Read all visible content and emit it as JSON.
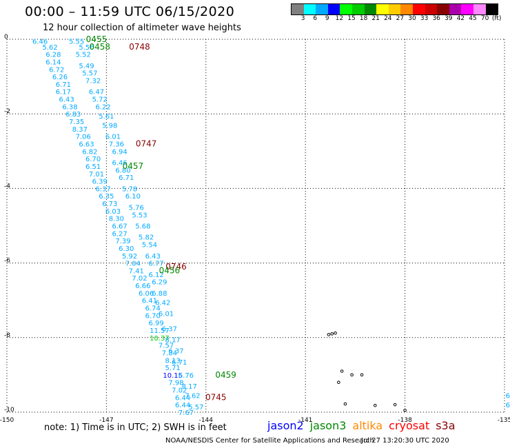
{
  "title": "00:00 – 11:59 UTC 06/15/2020",
  "subtitle": "12 hour collection of altimeter wave heights",
  "colorbar": {
    "unit": "(ft)",
    "labels": [
      "3",
      "6",
      "9",
      "12",
      "15",
      "18",
      "21",
      "24",
      "27",
      "30",
      "33",
      "36",
      "39",
      "42",
      "45",
      "70"
    ],
    "colors": [
      "#808080",
      "#00ffff",
      "#00aaff",
      "#0000ff",
      "#00ff00",
      "#00cc00",
      "#008800",
      "#ffff00",
      "#ffcc00",
      "#ff8800",
      "#ff0000",
      "#cc0000",
      "#880000",
      "#aa00aa",
      "#ff00ff",
      "#ff88ff",
      "#000000"
    ]
  },
  "footnote": "note: 1) Time is in UTC; 2) SWH is in feet",
  "legend": [
    {
      "name": "jason2",
      "color": "#0000ff"
    },
    {
      "name": "jason3",
      "color": "#008800"
    },
    {
      "name": "altika",
      "color": "#ff8800"
    },
    {
      "name": "cryosat",
      "color": "#ff0000"
    },
    {
      "name": "s3a",
      "color": "#880000"
    }
  ],
  "credit": "NOAA/NESDIS Center for Satellite Applications and Research",
  "timestamp": "Jul 27 13:20:30 UTC 2020",
  "chart_data": {
    "type": "scatter",
    "xlim": [
      -150,
      -135
    ],
    "ylim": [
      -10,
      0
    ],
    "x_ticks": [
      -150,
      -147,
      -144,
      -141,
      -138,
      -135
    ],
    "y_ticks": [
      0,
      -2,
      -4,
      -6,
      -8,
      -10
    ],
    "grid": true,
    "points": [
      {
        "x": -149.0,
        "y": -0.05,
        "v": "6.46",
        "c": "#00aaff"
      },
      {
        "x": -148.7,
        "y": -0.2,
        "v": "5.62",
        "c": "#00aaff"
      },
      {
        "x": -148.6,
        "y": -0.4,
        "v": "6.28",
        "c": "#00aaff"
      },
      {
        "x": -148.6,
        "y": -0.6,
        "v": "6.14",
        "c": "#00aaff"
      },
      {
        "x": -148.5,
        "y": -0.8,
        "v": "6.72",
        "c": "#00aaff"
      },
      {
        "x": -148.4,
        "y": -1.0,
        "v": "6.26",
        "c": "#00aaff"
      },
      {
        "x": -148.3,
        "y": -1.2,
        "v": "6.71",
        "c": "#00aaff"
      },
      {
        "x": -148.3,
        "y": -1.4,
        "v": "6.17",
        "c": "#00aaff"
      },
      {
        "x": -148.2,
        "y": -1.6,
        "v": "6.43",
        "c": "#00aaff"
      },
      {
        "x": -148.1,
        "y": -1.8,
        "v": "6.38",
        "c": "#00aaff"
      },
      {
        "x": -148.0,
        "y": -2.0,
        "v": "6.83",
        "c": "#00aaff"
      },
      {
        "x": -147.9,
        "y": -2.2,
        "v": "7.35",
        "c": "#00aaff"
      },
      {
        "x": -147.8,
        "y": -2.4,
        "v": "8.37",
        "c": "#00aaff"
      },
      {
        "x": -147.7,
        "y": -2.6,
        "v": "7.06",
        "c": "#00aaff"
      },
      {
        "x": -147.6,
        "y": -2.8,
        "v": "6.63",
        "c": "#00aaff"
      },
      {
        "x": -147.5,
        "y": -3.0,
        "v": "6.82",
        "c": "#00aaff"
      },
      {
        "x": -147.4,
        "y": -3.2,
        "v": "6.70",
        "c": "#00aaff"
      },
      {
        "x": -147.4,
        "y": -3.4,
        "v": "6.51",
        "c": "#00aaff"
      },
      {
        "x": -147.3,
        "y": -3.6,
        "v": "7.01",
        "c": "#00aaff"
      },
      {
        "x": -147.2,
        "y": -3.8,
        "v": "6.39",
        "c": "#00aaff"
      },
      {
        "x": -147.1,
        "y": -4.0,
        "v": "6.37",
        "c": "#00aaff"
      },
      {
        "x": -147.0,
        "y": -4.2,
        "v": "6.35",
        "c": "#00aaff"
      },
      {
        "x": -146.9,
        "y": -4.4,
        "v": "6.73",
        "c": "#00aaff"
      },
      {
        "x": -146.8,
        "y": -4.6,
        "v": "6.03",
        "c": "#00aaff"
      },
      {
        "x": -146.7,
        "y": -4.8,
        "v": "8.30",
        "c": "#00aaff"
      },
      {
        "x": -146.6,
        "y": -5.0,
        "v": "6.67",
        "c": "#00aaff"
      },
      {
        "x": -146.6,
        "y": -5.2,
        "v": "6.27",
        "c": "#00aaff"
      },
      {
        "x": -146.5,
        "y": -5.4,
        "v": "7.39",
        "c": "#00aaff"
      },
      {
        "x": -146.4,
        "y": -5.6,
        "v": "6.30",
        "c": "#00aaff"
      },
      {
        "x": -146.3,
        "y": -5.8,
        "v": "5.92",
        "c": "#00aaff"
      },
      {
        "x": -146.2,
        "y": -6.0,
        "v": "7.04",
        "c": "#00aaff"
      },
      {
        "x": -146.1,
        "y": -6.2,
        "v": "7.41",
        "c": "#00aaff"
      },
      {
        "x": -146.0,
        "y": -6.4,
        "v": "7.02",
        "c": "#00aaff"
      },
      {
        "x": -145.9,
        "y": -6.6,
        "v": "6.66",
        "c": "#00aaff"
      },
      {
        "x": -145.8,
        "y": -6.8,
        "v": "6.06",
        "c": "#00aaff"
      },
      {
        "x": -145.7,
        "y": -7.0,
        "v": "6.41",
        "c": "#00aaff"
      },
      {
        "x": -145.6,
        "y": -7.2,
        "v": "6.74",
        "c": "#00aaff"
      },
      {
        "x": -145.6,
        "y": -7.4,
        "v": "6.70",
        "c": "#00aaff"
      },
      {
        "x": -145.5,
        "y": -7.6,
        "v": "6.99",
        "c": "#00aaff"
      },
      {
        "x": -145.4,
        "y": -7.8,
        "v": "11.57",
        "c": "#00aaff"
      },
      {
        "x": -145.4,
        "y": -8.0,
        "v": "10.37",
        "c": "#00cc00"
      },
      {
        "x": -145.2,
        "y": -8.2,
        "v": "7.57",
        "c": "#00aaff"
      },
      {
        "x": -145.1,
        "y": -8.4,
        "v": "7.84",
        "c": "#00aaff"
      },
      {
        "x": -145.0,
        "y": -8.6,
        "v": "8.13",
        "c": "#00aaff"
      },
      {
        "x": -145.0,
        "y": -8.8,
        "v": "5.71",
        "c": "#00aaff"
      },
      {
        "x": -145.0,
        "y": -9.0,
        "v": "10.15",
        "c": "#0000ff"
      },
      {
        "x": -144.9,
        "y": -9.2,
        "v": "7.98",
        "c": "#00aaff"
      },
      {
        "x": -144.8,
        "y": -9.4,
        "v": "7.02",
        "c": "#00aaff"
      },
      {
        "x": -144.7,
        "y": -9.6,
        "v": "6.44",
        "c": "#00aaff"
      },
      {
        "x": -144.7,
        "y": -9.8,
        "v": "6.44",
        "c": "#00aaff"
      },
      {
        "x": -144.6,
        "y": -10.0,
        "v": "7.67",
        "c": "#00aaff"
      },
      {
        "x": -147.9,
        "y": -0.05,
        "v": "5.55",
        "c": "#00aaff"
      },
      {
        "x": -147.6,
        "y": -0.2,
        "v": "5.56",
        "c": "#00aaff"
      },
      {
        "x": -147.7,
        "y": -0.4,
        "v": "5.52",
        "c": "#00aaff"
      },
      {
        "x": -147.6,
        "y": -0.7,
        "v": "5.49",
        "c": "#00aaff"
      },
      {
        "x": -147.5,
        "y": -0.9,
        "v": "5.57",
        "c": "#00aaff"
      },
      {
        "x": -147.4,
        "y": -1.1,
        "v": "7.32",
        "c": "#00aaff"
      },
      {
        "x": -147.3,
        "y": -1.4,
        "v": "6.47",
        "c": "#00aaff"
      },
      {
        "x": -147.2,
        "y": -1.6,
        "v": "5.72",
        "c": "#00aaff"
      },
      {
        "x": -147.1,
        "y": -1.8,
        "v": "6.22",
        "c": "#00aaff"
      },
      {
        "x": -147.0,
        "y": -2.05,
        "v": "5.61",
        "c": "#00aaff"
      },
      {
        "x": -146.9,
        "y": -2.3,
        "v": "5.98",
        "c": "#00aaff"
      },
      {
        "x": -146.8,
        "y": -2.6,
        "v": "6.01",
        "c": "#00aaff"
      },
      {
        "x": -146.7,
        "y": -2.8,
        "v": "7.36",
        "c": "#00aaff"
      },
      {
        "x": -146.6,
        "y": -3.0,
        "v": "6.94",
        "c": "#00aaff"
      },
      {
        "x": -146.6,
        "y": -3.3,
        "v": "6.46",
        "c": "#00aaff"
      },
      {
        "x": -146.5,
        "y": -3.5,
        "v": "6.80",
        "c": "#00aaff"
      },
      {
        "x": -146.4,
        "y": -3.7,
        "v": "6.71",
        "c": "#00aaff"
      },
      {
        "x": -146.3,
        "y": -4.0,
        "v": "5.78",
        "c": "#00aaff"
      },
      {
        "x": -146.2,
        "y": -4.2,
        "v": "6.10",
        "c": "#00aaff"
      },
      {
        "x": -146.1,
        "y": -4.5,
        "v": "5.76",
        "c": "#00aaff"
      },
      {
        "x": -146.0,
        "y": -4.7,
        "v": "5.53",
        "c": "#00aaff"
      },
      {
        "x": -145.9,
        "y": -5.0,
        "v": "5.68",
        "c": "#00aaff"
      },
      {
        "x": -145.8,
        "y": -5.3,
        "v": "5.82",
        "c": "#00aaff"
      },
      {
        "x": -145.7,
        "y": -5.5,
        "v": "5.54",
        "c": "#00aaff"
      },
      {
        "x": -145.6,
        "y": -5.8,
        "v": "6.43",
        "c": "#00aaff"
      },
      {
        "x": -145.5,
        "y": -6.0,
        "v": "6.77",
        "c": "#00aaff"
      },
      {
        "x": -145.5,
        "y": -6.3,
        "v": "6.12",
        "c": "#00aaff"
      },
      {
        "x": -145.4,
        "y": -6.5,
        "v": "6.29",
        "c": "#00aaff"
      },
      {
        "x": -145.4,
        "y": -6.8,
        "v": "6.88",
        "c": "#00aaff"
      },
      {
        "x": -145.3,
        "y": -7.05,
        "v": "6.42",
        "c": "#00aaff"
      },
      {
        "x": -145.2,
        "y": -7.35,
        "v": "6.01",
        "c": "#00aaff"
      },
      {
        "x": -145.1,
        "y": -7.75,
        "v": "6.37",
        "c": "#00aaff"
      },
      {
        "x": -145.0,
        "y": -8.05,
        "v": "8.17",
        "c": "#00aaff"
      },
      {
        "x": -144.9,
        "y": -8.35,
        "v": "6.37",
        "c": "#00aaff"
      },
      {
        "x": -144.8,
        "y": -8.65,
        "v": "6.71",
        "c": "#00aaff"
      },
      {
        "x": -144.6,
        "y": -9.0,
        "v": "6.76",
        "c": "#00aaff"
      },
      {
        "x": -144.5,
        "y": -9.3,
        "v": "8.17",
        "c": "#00aaff"
      },
      {
        "x": -144.4,
        "y": -9.55,
        "v": "7.62",
        "c": "#00aaff"
      },
      {
        "x": -144.3,
        "y": -9.85,
        "v": "5.57",
        "c": "#00aaff"
      },
      {
        "x": -134.9,
        "y": -9.55,
        "v": "6",
        "c": "#00aaff"
      },
      {
        "x": -134.9,
        "y": -9.8,
        "v": "6",
        "c": "#00aaff"
      }
    ],
    "pass_labels": [
      {
        "x": -147.3,
        "y": 0.0,
        "text": "0455",
        "c": "#008800"
      },
      {
        "x": -147.2,
        "y": -0.2,
        "text": "0458",
        "c": "#008800"
      },
      {
        "x": -146.0,
        "y": -0.2,
        "text": "0748",
        "c": "#880000"
      },
      {
        "x": -145.8,
        "y": -2.8,
        "text": "0747",
        "c": "#880000"
      },
      {
        "x": -146.2,
        "y": -3.4,
        "text": "0457",
        "c": "#008800"
      },
      {
        "x": -144.9,
        "y": -6.1,
        "text": "0746",
        "c": "#880000"
      },
      {
        "x": -145.1,
        "y": -6.2,
        "text": "0456",
        "c": "#008800"
      },
      {
        "x": -143.4,
        "y": -9.0,
        "text": "0459",
        "c": "#008800"
      },
      {
        "x": -143.7,
        "y": -9.6,
        "text": "0745",
        "c": "#880000"
      }
    ],
    "islands": [
      {
        "x": -140.3,
        "y": -7.92
      },
      {
        "x": -140.2,
        "y": -7.9
      },
      {
        "x": -140.1,
        "y": -7.88
      },
      {
        "x": -139.9,
        "y": -8.9
      },
      {
        "x": -139.6,
        "y": -9.0
      },
      {
        "x": -139.3,
        "y": -9.0
      },
      {
        "x": -140.0,
        "y": -9.2
      },
      {
        "x": -139.8,
        "y": -9.78
      },
      {
        "x": -138.9,
        "y": -9.82
      },
      {
        "x": -138.3,
        "y": -9.8
      },
      {
        "x": -138.0,
        "y": -9.95
      }
    ]
  }
}
